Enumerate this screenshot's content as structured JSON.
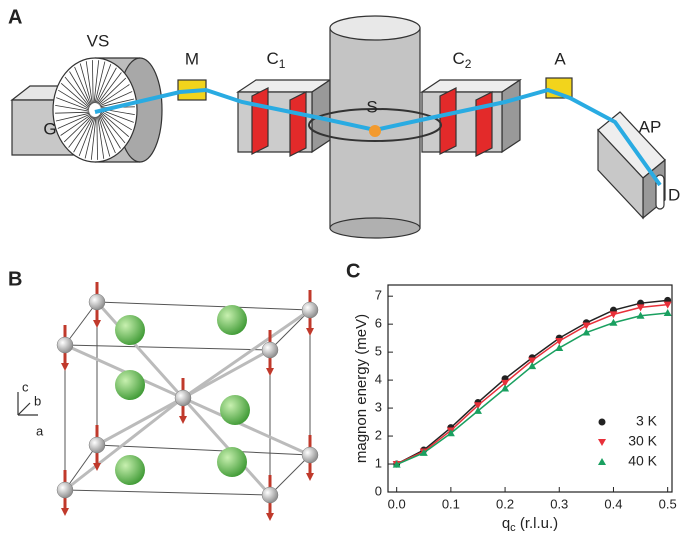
{
  "panel_a": {
    "label": "A",
    "parts": {
      "g": "G",
      "vs": "VS",
      "m": "M",
      "c1": {
        "main": "C",
        "sub": "1"
      },
      "c2": {
        "main": "C",
        "sub": "2"
      },
      "s": "S",
      "a": "A",
      "ap": "AP",
      "d": "D"
    }
  },
  "panel_b": {
    "label": "B",
    "axes": {
      "c": "c",
      "b": "b",
      "a": "a"
    }
  },
  "panel_c": {
    "label": "C"
  },
  "chart_data": {
    "type": "line",
    "x_label": {
      "main": "q",
      "sub": "c",
      "rest": " (r.l.u.)"
    },
    "y_label": "magnon energy (meV)",
    "x": [
      0,
      0.05,
      0.1,
      0.15,
      0.2,
      0.25,
      0.3,
      0.35,
      0.4,
      0.45,
      0.5
    ],
    "series": [
      {
        "name": "3 K",
        "color": "#222222",
        "marker": "circle",
        "values": [
          1.0,
          1.5,
          2.3,
          3.2,
          4.05,
          4.8,
          5.5,
          6.05,
          6.5,
          6.75,
          6.85
        ]
      },
      {
        "name": "30 K",
        "color": "#e8303a",
        "marker": "triangle-down",
        "values": [
          1.0,
          1.45,
          2.2,
          3.1,
          3.9,
          4.7,
          5.4,
          5.95,
          6.35,
          6.6,
          6.7
        ]
      },
      {
        "name": "40 K",
        "color": "#1aa060",
        "marker": "triangle-up",
        "values": [
          0.98,
          1.4,
          2.1,
          2.9,
          3.7,
          4.5,
          5.15,
          5.7,
          6.05,
          6.3,
          6.4
        ]
      }
    ],
    "xlim": [
      -0.016,
      0.508
    ],
    "ylim": [
      0,
      7.4
    ],
    "xticks": [
      {
        "value": 0,
        "label": "0.0"
      },
      0.1,
      0.2,
      0.3,
      0.4,
      0.5
    ],
    "yticks": [
      0,
      1,
      2,
      3,
      4,
      5,
      6,
      7
    ],
    "legend": "lower right",
    "grid": false
  }
}
